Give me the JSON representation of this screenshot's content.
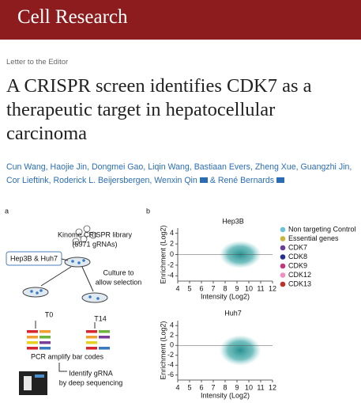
{
  "journal": "Cell Research",
  "article_type": "Letter to the Editor",
  "title_lines": [
    "A CRISPR screen identifies CDK7 as a",
    "therapeutic target in hepatocellular",
    "carcinoma"
  ],
  "authors": [
    "Cun Wang, Haojie Jin, Dongmei Gao, Liqin Wang, Bastiaan Evers, Zheng Xue, Guangzhi Jin, Cor Lieftink, Roderick L. Beijersbergen, Wenxin Qin",
    "& René Bernards"
  ],
  "figure": {
    "panel_a": {
      "label": "a",
      "library": "Kinome CRISPR library",
      "library_size": "(5971 gRNAs)",
      "cell_lines": "Hep3B & Huh7",
      "culture": [
        "Culture to",
        "allow selection"
      ],
      "timepoints": [
        "T0",
        "T14"
      ],
      "pcr": "PCR amplify bar codes",
      "identify": [
        "Identify gRNA",
        "by deep sequencing"
      ]
    },
    "panel_b": {
      "label": "b",
      "legend": [
        {
          "name": "Non targeting Control",
          "color": "#6cc3d9"
        },
        {
          "name": "Essential genes",
          "color": "#c9b43c"
        },
        {
          "name": "CDK7",
          "color": "#6a3d9a"
        },
        {
          "name": "CDK8",
          "color": "#23308f"
        },
        {
          "name": "CDK9",
          "color": "#c2377e"
        },
        {
          "name": "CDK12",
          "color": "#f08fc0"
        },
        {
          "name": "CDK13",
          "color": "#c0302a"
        }
      ],
      "plots": [
        {
          "type": "scatter",
          "title": "Hep3B",
          "xlabel": "Intensity (Log2)",
          "ylabel": "Enrichment (Log2)",
          "xlim": [
            4,
            12
          ],
          "xticks": [
            4,
            5,
            6,
            7,
            8,
            9,
            10,
            11,
            12
          ],
          "ylim": [
            -5,
            5
          ],
          "yticks": [
            4,
            2,
            0,
            -2,
            -4
          ]
        },
        {
          "type": "scatter",
          "title": "Huh7",
          "xlabel": "Intensity (Log2)",
          "ylabel": "Enrichment (Log2)",
          "xlim": [
            4,
            12
          ],
          "xticks": [
            4,
            5,
            6,
            7,
            8,
            9,
            10,
            11,
            12
          ],
          "ylim": [
            -7,
            5
          ],
          "yticks": [
            4,
            2,
            0,
            -2,
            -4,
            -6
          ]
        }
      ]
    }
  }
}
